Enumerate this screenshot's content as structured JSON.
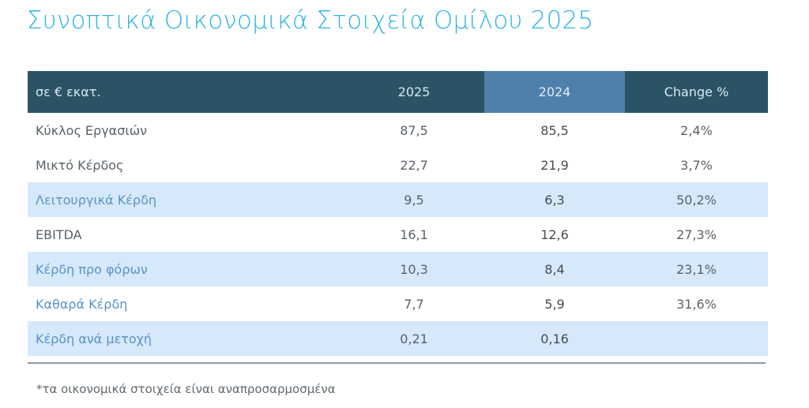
{
  "title": "Συνοπτικά Οικονομικά Στοιχεία Ομίλου 2025",
  "table": {
    "headers": {
      "label": "σε € εκατ.",
      "y2025": "2025",
      "y2024": "2024",
      "change": "Change %"
    },
    "rows": [
      {
        "label": "Κύκλος Εργασιών",
        "y2025": "87,5",
        "y2024": "85,5",
        "change": "2,4%"
      },
      {
        "label": "Μικτό Κέρδος",
        "y2025": "22,7",
        "y2024": "21,9",
        "change": "3,7%"
      },
      {
        "label": "Λειτουργικά Κέρδη",
        "y2025": "9,5",
        "y2024": "6,3",
        "change": "50,2%"
      },
      {
        "label": "EBITDA",
        "y2025": "16,1",
        "y2024": "12,6",
        "change": "27,3%"
      },
      {
        "label": "Κέρδη προ φόρων",
        "y2025": "10,3",
        "y2024": "8,4",
        "change": "23,1%"
      },
      {
        "label": "Καθαρά Κέρδη",
        "y2025": "7,7",
        "y2024": "5,9",
        "change": "31,6%"
      },
      {
        "label": "Κέρδη ανά μετοχή",
        "y2025": "0,21",
        "y2024": "0,16",
        "change": ""
      }
    ]
  },
  "footnote": "*τα οικονομικά στοιχεία είναι αναπροσαρμοσμένα",
  "colors": {
    "title": "#2fb4e6",
    "header_bg": "#2a5466",
    "header_highlight": "#4f7fab",
    "alt_row": "#d6e9fa",
    "blue_label": "#5a93c6"
  }
}
